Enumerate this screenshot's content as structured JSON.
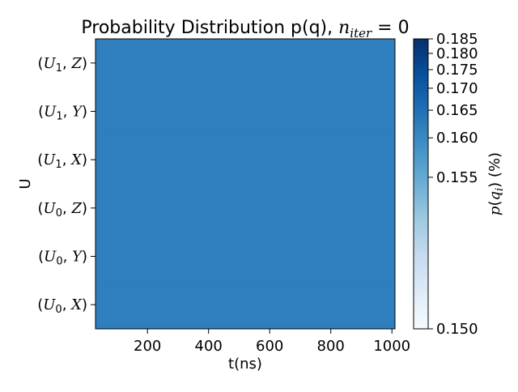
{
  "chart_data": {
    "type": "heatmap",
    "title": {
      "text": "Probability Distribution p(q), ",
      "math_var": "n",
      "math_sub": "iter",
      "math_rest": " = 0"
    },
    "xlabel": "t(ns)",
    "ylabel": "U",
    "xlim": [
      30,
      1010
    ],
    "x_ticks": [
      200,
      400,
      600,
      800,
      1000
    ],
    "rows": [
      {
        "op": "U",
        "sub": "1",
        "axis": "Z"
      },
      {
        "op": "U",
        "sub": "1",
        "axis": "Y"
      },
      {
        "op": "U",
        "sub": "1",
        "axis": "X"
      },
      {
        "op": "U",
        "sub": "0",
        "axis": "Z"
      },
      {
        "op": "U",
        "sub": "0",
        "axis": "Y"
      },
      {
        "op": "U",
        "sub": "0",
        "axis": "X"
      }
    ],
    "values": [
      [
        0.1667
      ],
      [
        0.1667
      ],
      [
        0.1667
      ],
      [
        0.1667
      ],
      [
        0.1667
      ],
      [
        0.1667
      ]
    ],
    "colorbar": {
      "min": 0.15,
      "max": 0.185,
      "scale": "power",
      "ticks": [
        "0.150",
        "0.155",
        "0.160",
        "0.165",
        "0.170",
        "0.175",
        "0.180",
        "0.185"
      ],
      "label": {
        "math_var": "p",
        "paren_open": "(",
        "math_var2": "q",
        "math_sub": "i",
        "rest": ") (%)"
      },
      "colormap": "Blues",
      "color_low": "#f7fbff",
      "color_high": "#08306b",
      "cell_color": "#2f7fbf"
    }
  }
}
